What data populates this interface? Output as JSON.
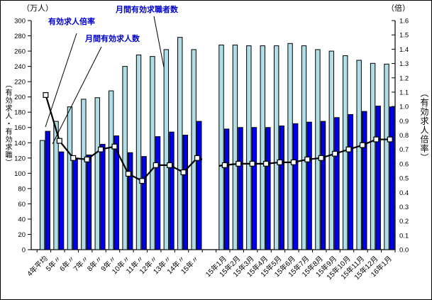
{
  "chart_data": {
    "type": "combo-bar-line",
    "left_axis": {
      "unit": "（万人）",
      "side_label": "（有効求人・有効求職）",
      "min": 0,
      "max": 300,
      "step": 20
    },
    "right_axis": {
      "unit": "（倍）",
      "side_label": "（有効求人倍率）",
      "min": 0.0,
      "max": 1.6,
      "step": 0.1
    },
    "series_labels": {
      "ratio": "有効求人倍率",
      "openings": "月間有効求人数",
      "seekers": "月間有効求職者数"
    },
    "colors": {
      "seekers_bar": "#B0DEE6",
      "openings_bar": "#0000E8",
      "bar_outline": "#000000",
      "ratio_line": "#000000",
      "marker_fill": "#FFFFFF",
      "annotation_text": "#0000CC"
    },
    "groups": [
      {
        "name": "annual",
        "categories": [
          "4年平均",
          "5年〃",
          "6年〃",
          "7年〃",
          "8年〃",
          "9年〃",
          "10年〃",
          "11年〃",
          "12年〃",
          "13年〃",
          "14年〃",
          "15年〃"
        ],
        "seekers": [
          143,
          168,
          187,
          197,
          199,
          208,
          240,
          255,
          253,
          262,
          278,
          262
        ],
        "openings": [
          155,
          128,
          119,
          124,
          138,
          149,
          127,
          122,
          148,
          154,
          150,
          168
        ],
        "ratio": [
          1.08,
          0.76,
          0.64,
          0.63,
          0.7,
          0.72,
          0.53,
          0.48,
          0.59,
          0.59,
          0.54,
          0.64
        ]
      },
      {
        "name": "monthly",
        "categories": [
          "15年1月",
          "15年2月",
          "15年3月",
          "15年4月",
          "15年5月",
          "15年6月",
          "15年7月",
          "15年8月",
          "15年9月",
          "15年10月",
          "15年11月",
          "15年12月",
          "16年1月"
        ],
        "seekers": [
          268,
          268,
          267,
          267,
          267,
          270,
          267,
          262,
          260,
          254,
          248,
          244,
          243
        ],
        "openings": [
          158,
          160,
          160,
          160,
          162,
          165,
          167,
          168,
          173,
          177,
          181,
          188,
          187
        ],
        "ratio": [
          0.59,
          0.6,
          0.6,
          0.6,
          0.61,
          0.61,
          0.63,
          0.64,
          0.67,
          0.7,
          0.73,
          0.77,
          0.77
        ]
      }
    ],
    "grid": "off",
    "legend": "leader-line annotations"
  }
}
